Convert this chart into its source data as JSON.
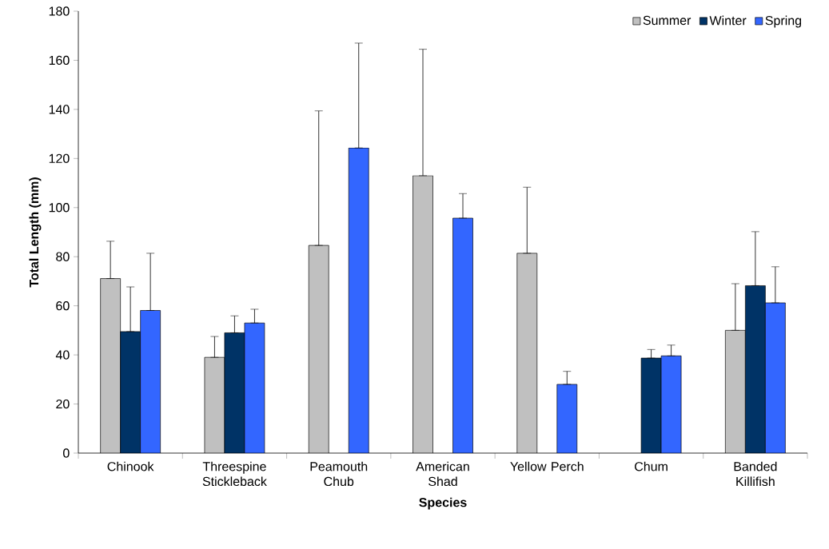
{
  "chart_data": {
    "type": "bar",
    "xlabel": "Species",
    "ylabel": "Total Length (mm)",
    "categories": [
      "Chinook",
      "Threespine Stickleback",
      "Peamouth Chub",
      "American Shad",
      "Yellow Perch",
      "Chum",
      "Banded Killifish"
    ],
    "series": [
      {
        "name": "Summer",
        "color": "#c0c0c0",
        "values": [
          71.1,
          39.0,
          84.6,
          113.0,
          81.4,
          null,
          50.0
        ],
        "errors": [
          [
            71.1,
            86.3
          ],
          [
            39.0,
            47.5
          ],
          [
            84.6,
            139.4
          ],
          [
            113.0,
            164.5
          ],
          [
            81.4,
            108.3
          ],
          null,
          [
            50.0,
            69.0
          ]
        ]
      },
      {
        "name": "Winter",
        "color": "#003366",
        "values": [
          49.5,
          49.0,
          null,
          null,
          null,
          38.7,
          68.2
        ],
        "errors": [
          [
            49.5,
            67.7
          ],
          [
            49.0,
            55.9
          ],
          null,
          null,
          null,
          [
            38.7,
            42.2
          ],
          [
            68.2,
            90.2
          ]
        ]
      },
      {
        "name": "Spring",
        "color": "#3366ff",
        "values": [
          58.1,
          53.0,
          124.3,
          95.7,
          28.0,
          39.6,
          61.2
        ],
        "errors": [
          [
            58.1,
            81.4
          ],
          [
            53.0,
            58.6
          ],
          [
            124.3,
            167.0
          ],
          [
            95.7,
            105.7
          ],
          [
            28.0,
            33.3
          ],
          [
            39.6,
            44.0
          ],
          [
            61.2,
            75.9
          ]
        ]
      }
    ],
    "ylim": [
      0,
      180
    ],
    "yticks": [
      0,
      20,
      40,
      60,
      80,
      100,
      120,
      140,
      160,
      180
    ],
    "grid": false,
    "legend": "top right"
  }
}
